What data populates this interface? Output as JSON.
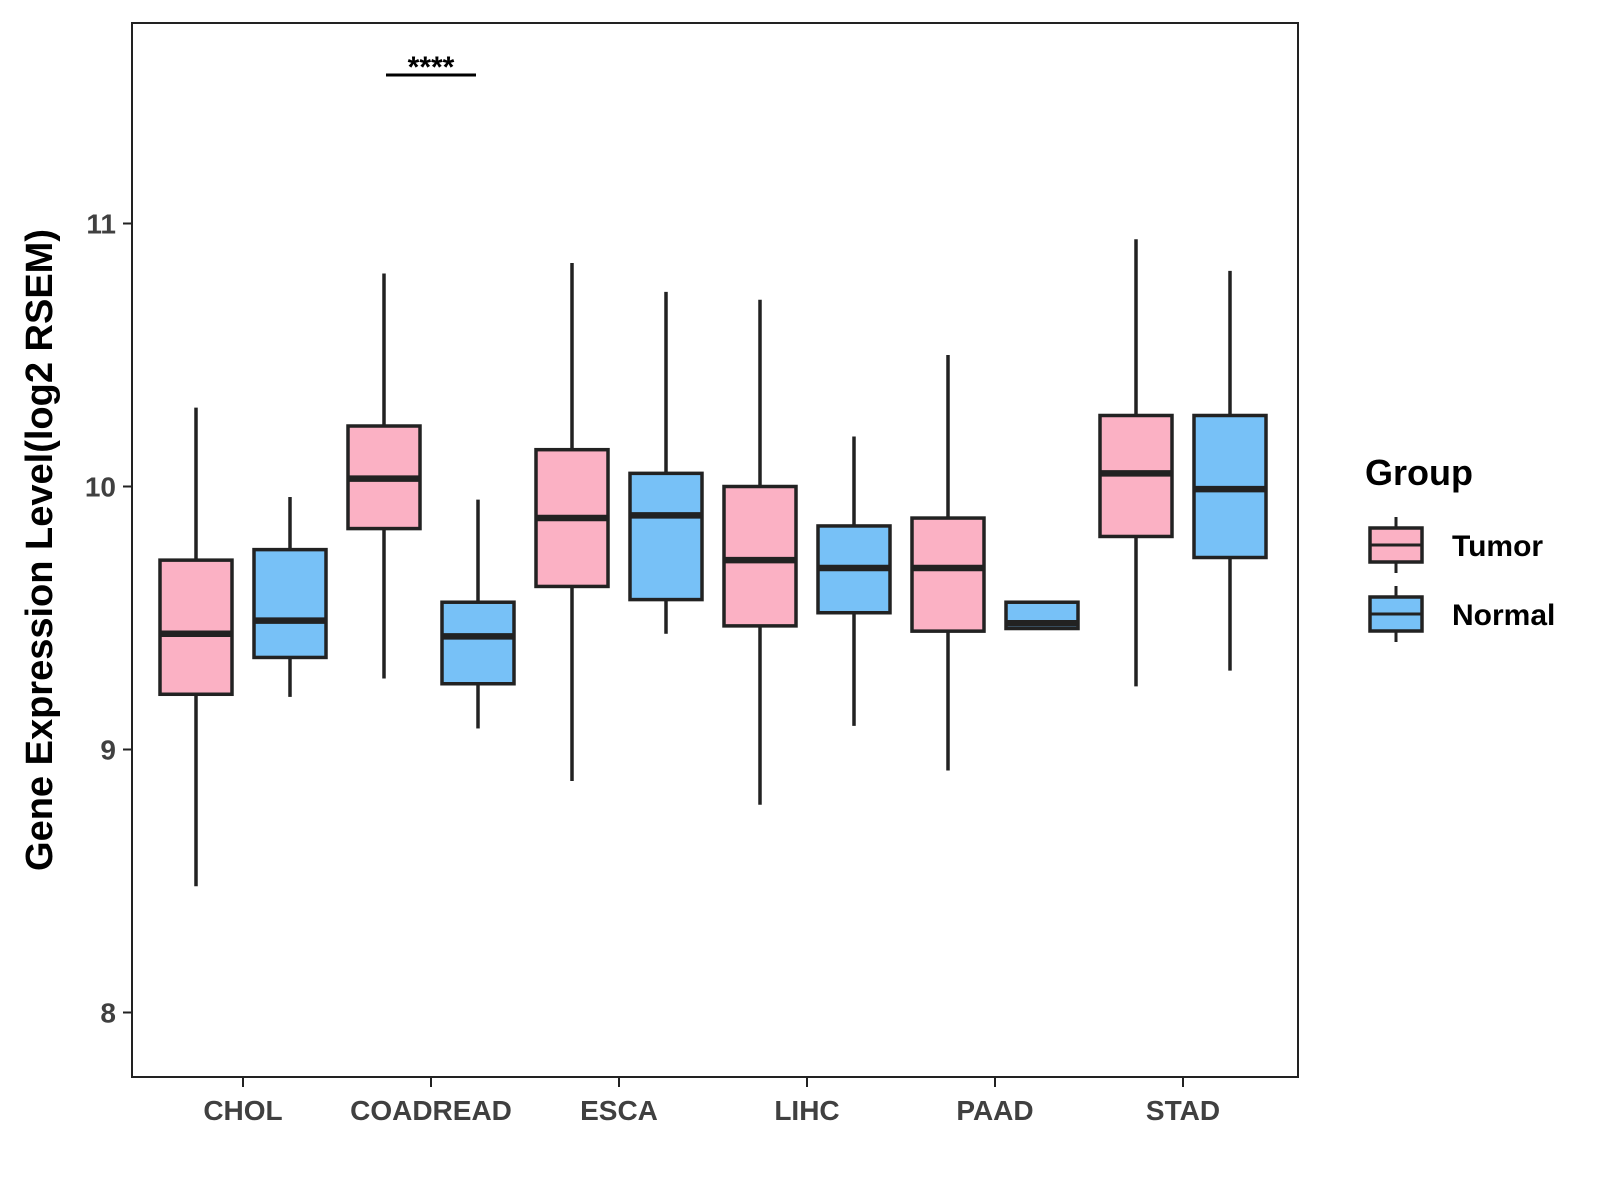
{
  "chart_data": {
    "type": "boxplot",
    "title": "",
    "xlabel": "",
    "ylabel": "Gene Expression Level(log2 RSEM)",
    "ylim": [
      7.75,
      11.8
    ],
    "yticks": [
      8,
      9,
      10,
      11
    ],
    "ytick_labels": [
      "8",
      "9",
      "10",
      "11"
    ],
    "grid": false,
    "categories": [
      "CHOL",
      "COADREAD",
      "ESCA",
      "LIHC",
      "PAAD",
      "STAD"
    ],
    "series": [
      {
        "name": "Tumor",
        "color": "#FBB1C4",
        "boxes": [
          {
            "whisker_low": 8.48,
            "q1": 9.21,
            "median": 9.44,
            "q3": 9.72,
            "whisker_high": 10.3
          },
          {
            "whisker_low": 9.27,
            "q1": 9.84,
            "median": 10.03,
            "q3": 10.23,
            "whisker_high": 10.81
          },
          {
            "whisker_low": 8.88,
            "q1": 9.62,
            "median": 9.88,
            "q3": 10.14,
            "whisker_high": 10.85
          },
          {
            "whisker_low": 8.79,
            "q1": 9.47,
            "median": 9.72,
            "q3": 10.0,
            "whisker_high": 10.71
          },
          {
            "whisker_low": 8.92,
            "q1": 9.45,
            "median": 9.69,
            "q3": 9.88,
            "whisker_high": 10.5
          },
          {
            "whisker_low": 9.24,
            "q1": 9.81,
            "median": 10.05,
            "q3": 10.27,
            "whisker_high": 10.94
          }
        ]
      },
      {
        "name": "Normal",
        "color": "#77C1F7",
        "boxes": [
          {
            "whisker_low": 9.2,
            "q1": 9.35,
            "median": 9.49,
            "q3": 9.76,
            "whisker_high": 9.96
          },
          {
            "whisker_low": 9.08,
            "q1": 9.25,
            "median": 9.43,
            "q3": 9.56,
            "whisker_high": 9.95
          },
          {
            "whisker_low": 9.44,
            "q1": 9.57,
            "median": 9.89,
            "q3": 10.05,
            "whisker_high": 10.74
          },
          {
            "whisker_low": 9.09,
            "q1": 9.52,
            "median": 9.69,
            "q3": 9.85,
            "whisker_high": 10.19
          },
          {
            "whisker_low": 9.46,
            "q1": 9.46,
            "median": 9.48,
            "q3": 9.56,
            "whisker_high": 9.56
          },
          {
            "whisker_low": 9.3,
            "q1": 9.73,
            "median": 9.99,
            "q3": 10.27,
            "whisker_high": 10.82
          }
        ]
      }
    ],
    "annotations": [
      {
        "category": "COADREAD",
        "text": "****"
      }
    ],
    "legend": {
      "title": "Group",
      "position": "right",
      "entries": [
        "Tumor",
        "Normal"
      ]
    }
  }
}
